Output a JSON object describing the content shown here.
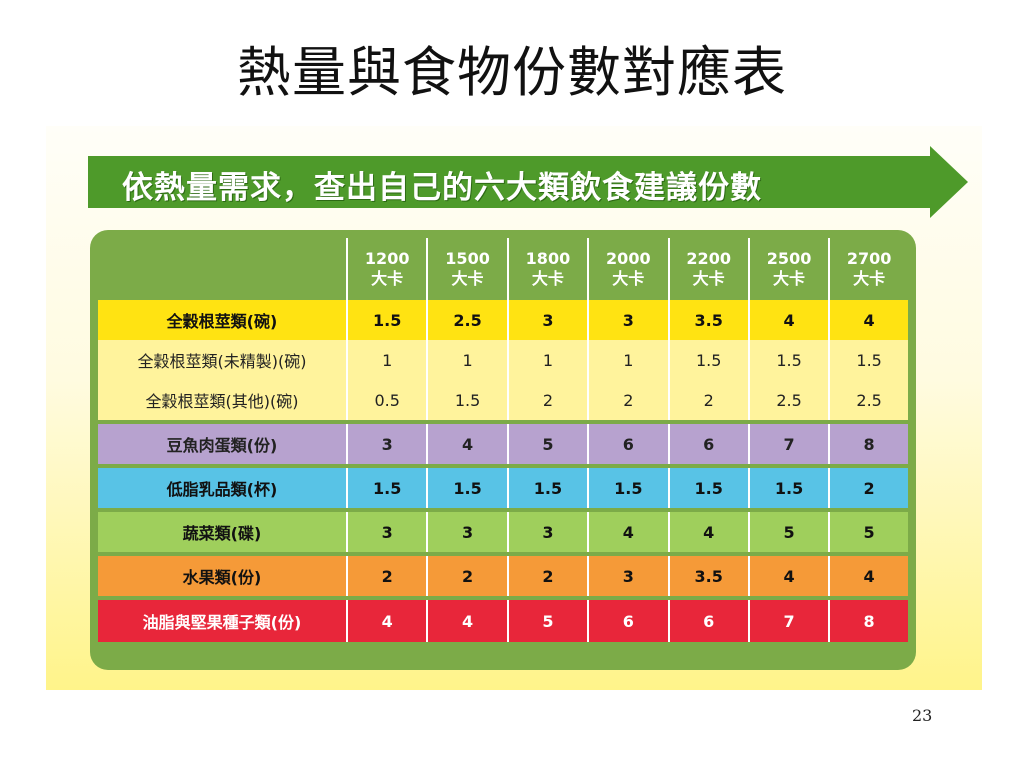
{
  "slide": {
    "title": "熱量與食物份數對應表",
    "page_number": "23"
  },
  "banner": {
    "text": "依熱量需求，查出自己的六大類飲食建議份數"
  },
  "table": {
    "columns": [
      {
        "kcal": "1200",
        "unit": "大卡"
      },
      {
        "kcal": "1500",
        "unit": "大卡"
      },
      {
        "kcal": "1800",
        "unit": "大卡"
      },
      {
        "kcal": "2000",
        "unit": "大卡"
      },
      {
        "kcal": "2200",
        "unit": "大卡"
      },
      {
        "kcal": "2500",
        "unit": "大卡"
      },
      {
        "kcal": "2700",
        "unit": "大卡"
      }
    ],
    "rows": [
      {
        "label": "全穀根莖類(碗)",
        "values": [
          "1.5",
          "2.5",
          "3",
          "3",
          "3.5",
          "4",
          "4"
        ]
      },
      {
        "label": "全穀根莖類(未精製)(碗)",
        "values": [
          "1",
          "1",
          "1",
          "1",
          "1.5",
          "1.5",
          "1.5"
        ]
      },
      {
        "label": "全穀根莖類(其他)(碗)",
        "values": [
          "0.5",
          "1.5",
          "2",
          "2",
          "2",
          "2.5",
          "2.5"
        ]
      },
      {
        "label": "豆魚肉蛋類(份)",
        "values": [
          "3",
          "4",
          "5",
          "6",
          "6",
          "7",
          "8"
        ]
      },
      {
        "label": "低脂乳品類(杯)",
        "values": [
          "1.5",
          "1.5",
          "1.5",
          "1.5",
          "1.5",
          "1.5",
          "2"
        ]
      },
      {
        "label": "蔬菜類(碟)",
        "values": [
          "3",
          "3",
          "3",
          "4",
          "4",
          "5",
          "5"
        ]
      },
      {
        "label": "水果類(份)",
        "values": [
          "2",
          "2",
          "2",
          "3",
          "3.5",
          "4",
          "4"
        ]
      },
      {
        "label": "油脂與堅果種子類(份)",
        "values": [
          "4",
          "4",
          "5",
          "6",
          "6",
          "7",
          "8"
        ]
      }
    ]
  },
  "colors": {
    "banner_green": "#4e9a2a",
    "frame_green": "#7cab48",
    "grain_yellow": "#ffe312",
    "grain_sub_yellow": "#fff39c",
    "protein_purple": "#b7a2cf",
    "dairy_cyan": "#58c3e6",
    "vegetable_green": "#9fcf5c",
    "fruit_orange": "#f59a38",
    "oil_red": "#e8263a"
  }
}
